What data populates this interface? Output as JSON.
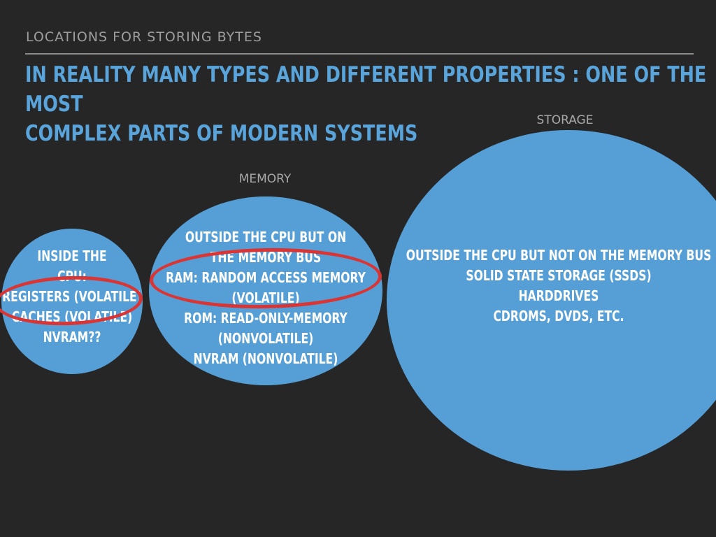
{
  "slide": {
    "kicker": "LOCATIONS FOR STORING BYTES",
    "headline_line1": "IN REALITY MANY TYPES AND DIFFERENT PROPERTIES : ONE OF THE MOST",
    "headline_line2": "COMPLEX PARTS OF MODERN SYSTEMS"
  },
  "groups": {
    "memory_label": "MEMORY",
    "storage_label": "STORAGE"
  },
  "cpu_circle": {
    "lines": [
      "INSIDE THE",
      "CPU:",
      "REGISTERS (VOLATILE)",
      "CACHES (VOLATILE)",
      "NVRAM??"
    ]
  },
  "memory_circle": {
    "lines": [
      "OUTSIDE THE CPU BUT ON",
      "THE MEMORY BUS",
      "RAM: RANDOM ACCESS MEMORY",
      "(VOLATILE)",
      "ROM: READ-ONLY-MEMORY",
      "(NONVOLATILE)",
      "NVRAM (NONVOLATILE)"
    ]
  },
  "storage_circle": {
    "lines": [
      "OUTSIDE THE CPU BUT NOT ON THE MEMORY BUS",
      "SOLID STATE STORAGE (SSDS)",
      "HARDDRIVES",
      "CDROMS, DVDS, ETC."
    ]
  },
  "colors": {
    "background": "#262626",
    "circle_fill": "#559fd6",
    "headline": "#5aa4dc",
    "highlight_oval": "#d93535"
  }
}
